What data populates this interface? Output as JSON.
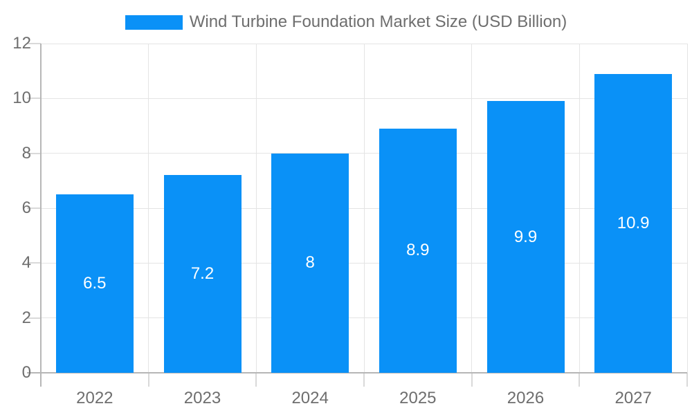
{
  "legend": {
    "label": "Wind Turbine Foundation Market Size (USD Billion)"
  },
  "colors": {
    "bar": "#0a91f7",
    "grid": "#e4e4e4",
    "tick": "#d9d9d9",
    "axis": "#b6b6b6",
    "text": "#6e6e6e",
    "value_text": "#ffffff",
    "background": "#ffffff"
  },
  "chart_data": {
    "type": "bar",
    "title": "Wind Turbine Foundation Market Size (USD Billion)",
    "categories": [
      "2022",
      "2023",
      "2024",
      "2025",
      "2026",
      "2027"
    ],
    "values": [
      6.5,
      7.2,
      8,
      8.9,
      9.9,
      10.9
    ],
    "value_labels": [
      "6.5",
      "7.2",
      "8",
      "8.9",
      "9.9",
      "10.9"
    ],
    "series_name": "Wind Turbine Foundation Market Size (USD Billion)",
    "xlabel": "",
    "ylabel": "",
    "ylim": [
      0,
      12
    ],
    "ytick_step": 2,
    "yticks": [
      "0",
      "2",
      "4",
      "6",
      "8",
      "10",
      "12"
    ],
    "grid": true,
    "legend_position": "top",
    "value_label_position": "center-inside"
  }
}
